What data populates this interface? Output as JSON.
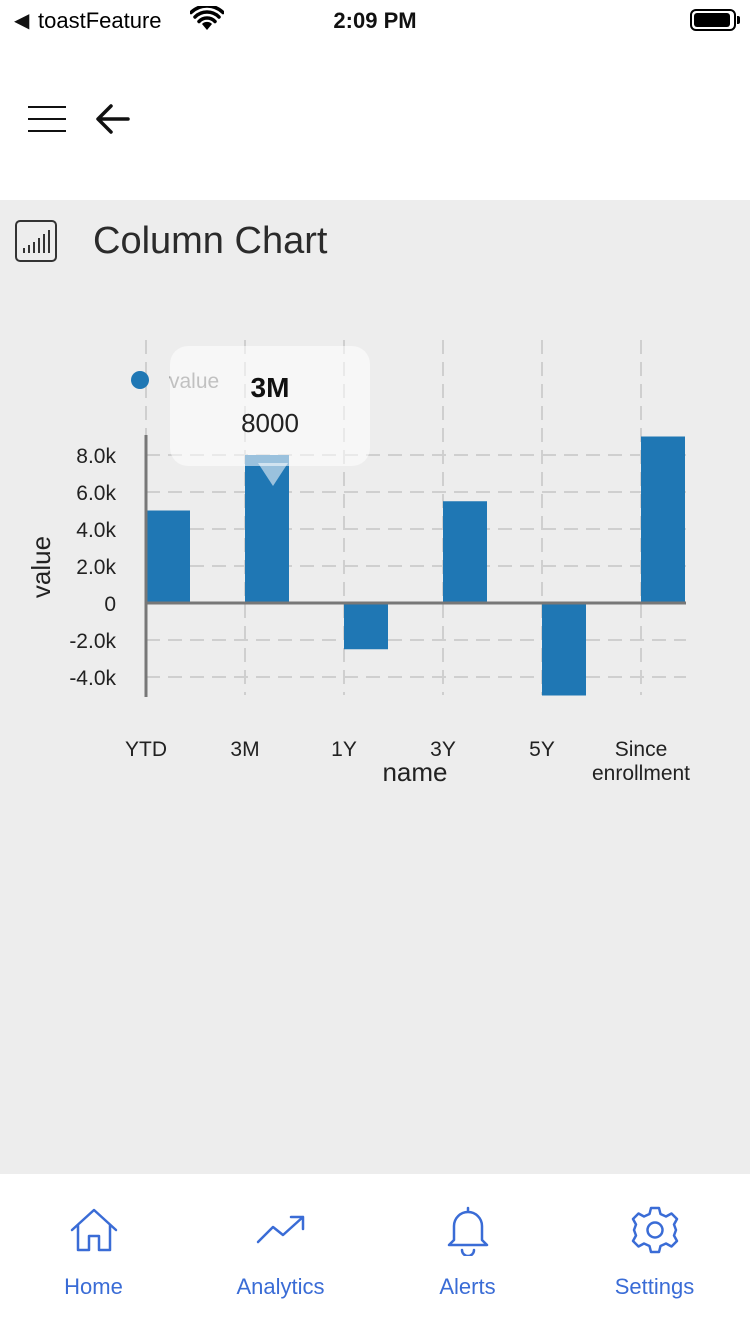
{
  "status_bar": {
    "back_indicator": "◀",
    "app_name": "toastFeature",
    "time": "2:09 PM"
  },
  "nav": {
    "menu_icon": "hamburger-icon",
    "back_icon": "arrow-left-icon"
  },
  "page": {
    "title": "Column Chart",
    "icon": "bar-chart-icon"
  },
  "tooltip": {
    "category": "3M",
    "value": "8000"
  },
  "chart_data": {
    "type": "bar",
    "categories": [
      "YTD",
      "3M",
      "1Y",
      "3Y",
      "5Y",
      "Since enrollment"
    ],
    "category_lines": [
      [
        "YTD"
      ],
      [
        "3M"
      ],
      [
        "1Y"
      ],
      [
        "3Y"
      ],
      [
        "5Y"
      ],
      [
        "Since",
        "enrollment"
      ]
    ],
    "values": [
      5000,
      8000,
      -2500,
      5500,
      -5000,
      9000
    ],
    "xlabel": "name",
    "ylabel": "value",
    "legend": [
      {
        "name": "value"
      }
    ],
    "legend_position": "top-left",
    "yticks": [
      -4000,
      -2000,
      0,
      2000,
      4000,
      6000,
      8000
    ],
    "ytick_labels": [
      "-4.0k",
      "-2.0k",
      "0",
      "2.0k",
      "4.0k",
      "6.0k",
      "8.0k"
    ],
    "ylim": [
      -5000,
      9000
    ],
    "grid": true,
    "bar_color": "#1f77b4"
  },
  "tabs": [
    {
      "label": "Home",
      "icon": "home-icon"
    },
    {
      "label": "Analytics",
      "icon": "trending-up-icon"
    },
    {
      "label": "Alerts",
      "icon": "bell-icon"
    },
    {
      "label": "Settings",
      "icon": "gear-icon"
    }
  ],
  "colors": {
    "accent": "#3a6cd6",
    "content_bg": "#ededed"
  }
}
